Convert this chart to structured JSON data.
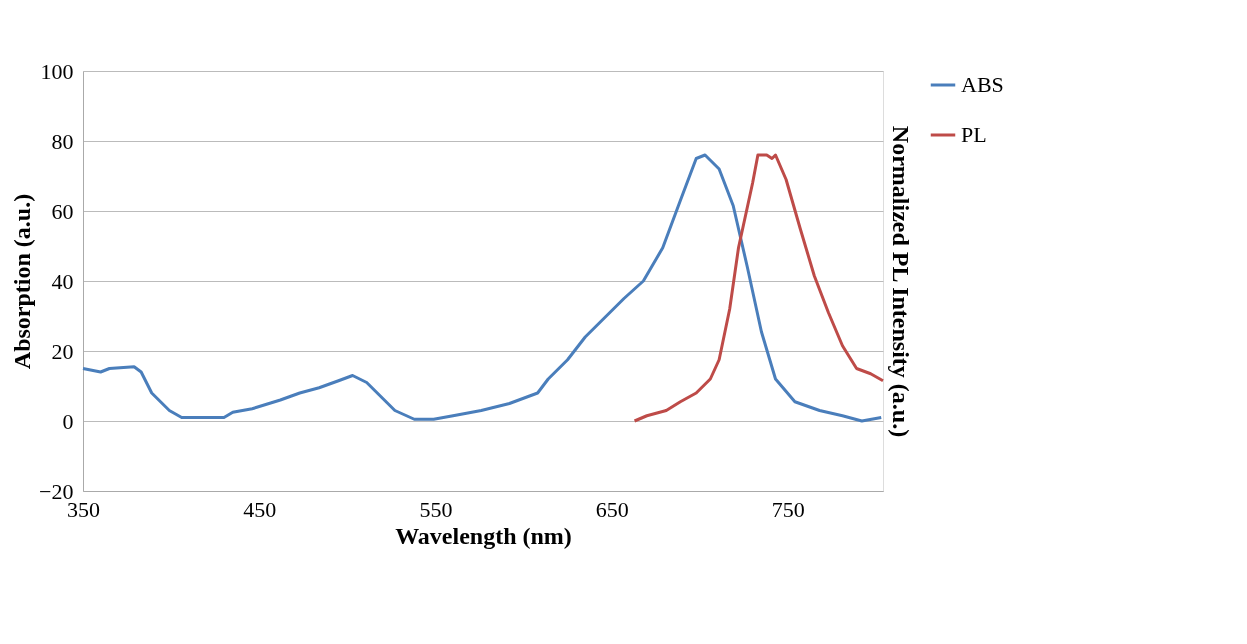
{
  "chart_data": {
    "type": "line",
    "xlabel": "Wavelength (nm)",
    "ylabel": "Absorption (a.u.)",
    "y2label": "Normalized PL Intensity (a.u.)",
    "xlim": [
      350,
      804
    ],
    "xticks": [
      350,
      450,
      550,
      650,
      750
    ],
    "ylim": [
      -20,
      100
    ],
    "yticks": [
      -20,
      0,
      20,
      40,
      60,
      80,
      100
    ],
    "grid": "y",
    "legend": "right",
    "line_style": "solid",
    "series": [
      {
        "name": "ABS",
        "color": "#4a7ebb",
        "x": [
          350,
          360,
          365,
          379,
          383,
          389,
          399,
          406,
          419,
          430,
          435,
          446,
          462,
          473,
          484,
          495,
          503,
          511,
          519,
          527,
          538,
          549,
          560,
          576,
          592,
          608,
          614,
          625,
          635,
          646,
          657,
          668,
          679,
          689,
          698,
          703,
          711,
          719,
          727,
          735,
          743,
          754,
          768,
          781,
          792,
          803
        ],
        "values": [
          15,
          14,
          15,
          15.5,
          14,
          8,
          3,
          1,
          1,
          1,
          2.5,
          3.5,
          6,
          8,
          9.5,
          11.5,
          13,
          11,
          7,
          3,
          0.5,
          0.5,
          1.5,
          3,
          5,
          8,
          12,
          17.5,
          24,
          29.5,
          35,
          40,
          49.5,
          63,
          75,
          76,
          72,
          61.5,
          44,
          25.5,
          12,
          5.5,
          3,
          1.5,
          0,
          1
        ]
      },
      {
        "name": "PL",
        "color": "#be4b48",
        "x": [
          663,
          670,
          681,
          689,
          698,
          706,
          711,
          717,
          722,
          730,
          733,
          738,
          741,
          743,
          749,
          757,
          765,
          773,
          781,
          789,
          797,
          804
        ],
        "values": [
          0,
          1.5,
          3,
          5.5,
          8,
          12,
          17.5,
          32,
          49.5,
          68,
          76,
          76,
          75,
          76,
          69,
          55,
          41.5,
          31,
          21.5,
          15,
          13.5,
          11.5
        ]
      }
    ]
  }
}
